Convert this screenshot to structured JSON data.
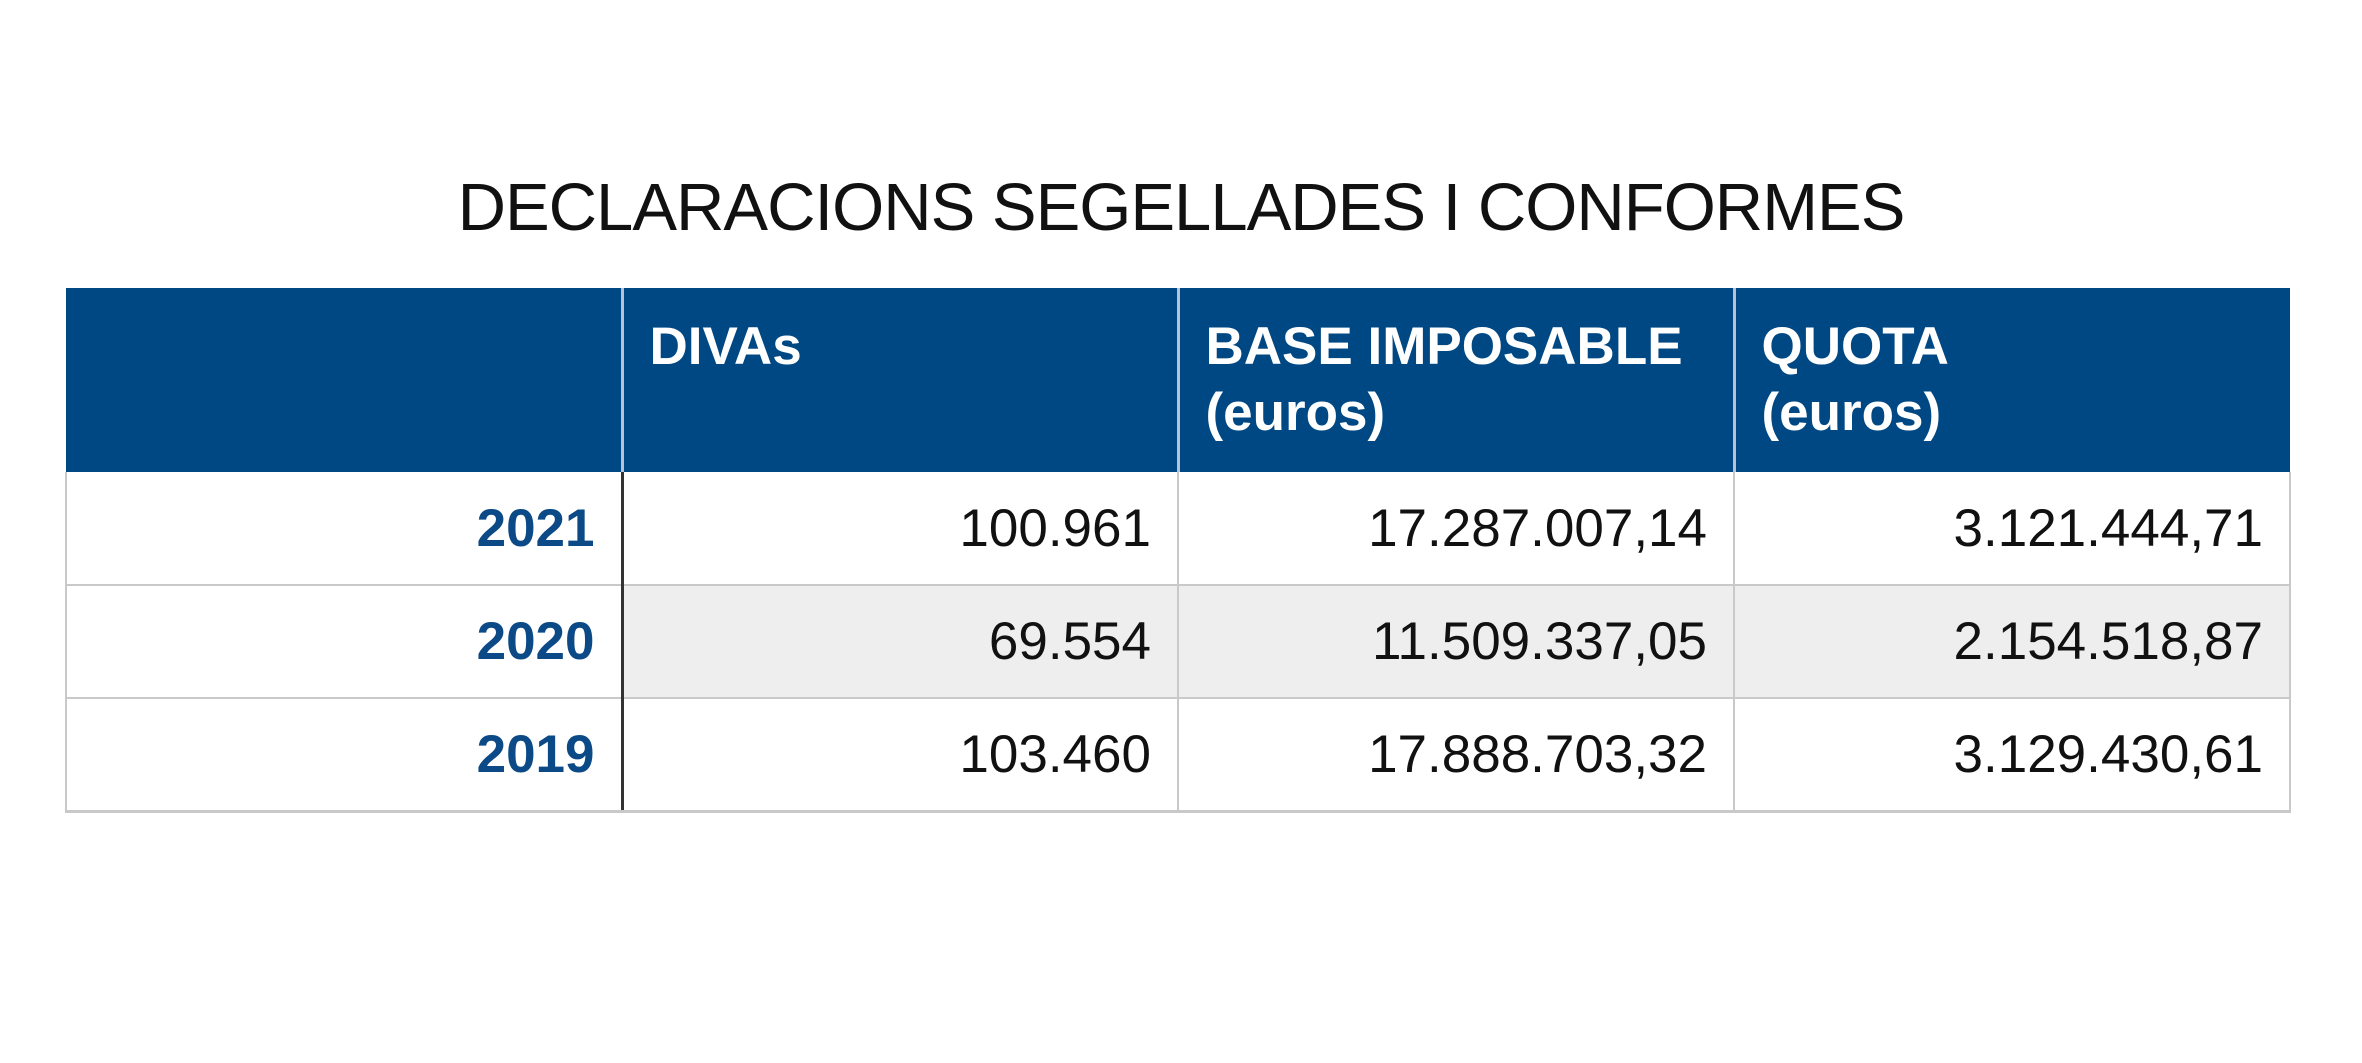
{
  "chart_data": {
    "type": "table",
    "title": "DECLARACIONS SEGELLADES I CONFORMES",
    "columns": [
      {
        "label": "",
        "sublabel": ""
      },
      {
        "label": "DIVAs",
        "sublabel": ""
      },
      {
        "label": "BASE IMPOSABLE",
        "sublabel": "(euros)"
      },
      {
        "label": "QUOTA",
        "sublabel": "(euros)"
      }
    ],
    "rows": [
      {
        "year": "2021",
        "divas": "100.961",
        "base": "17.287.007,14",
        "quota": "3.121.444,71"
      },
      {
        "year": "2020",
        "divas": "69.554",
        "base": "11.509.337,05",
        "quota": "2.154.518,87"
      },
      {
        "year": "2019",
        "divas": "103.460",
        "base": "17.888.703,32",
        "quota": "3.129.430,61"
      }
    ],
    "colors": {
      "header_bg": "#004884",
      "year_text": "#0b4a86",
      "shaded_row": "#eeeeee"
    }
  }
}
